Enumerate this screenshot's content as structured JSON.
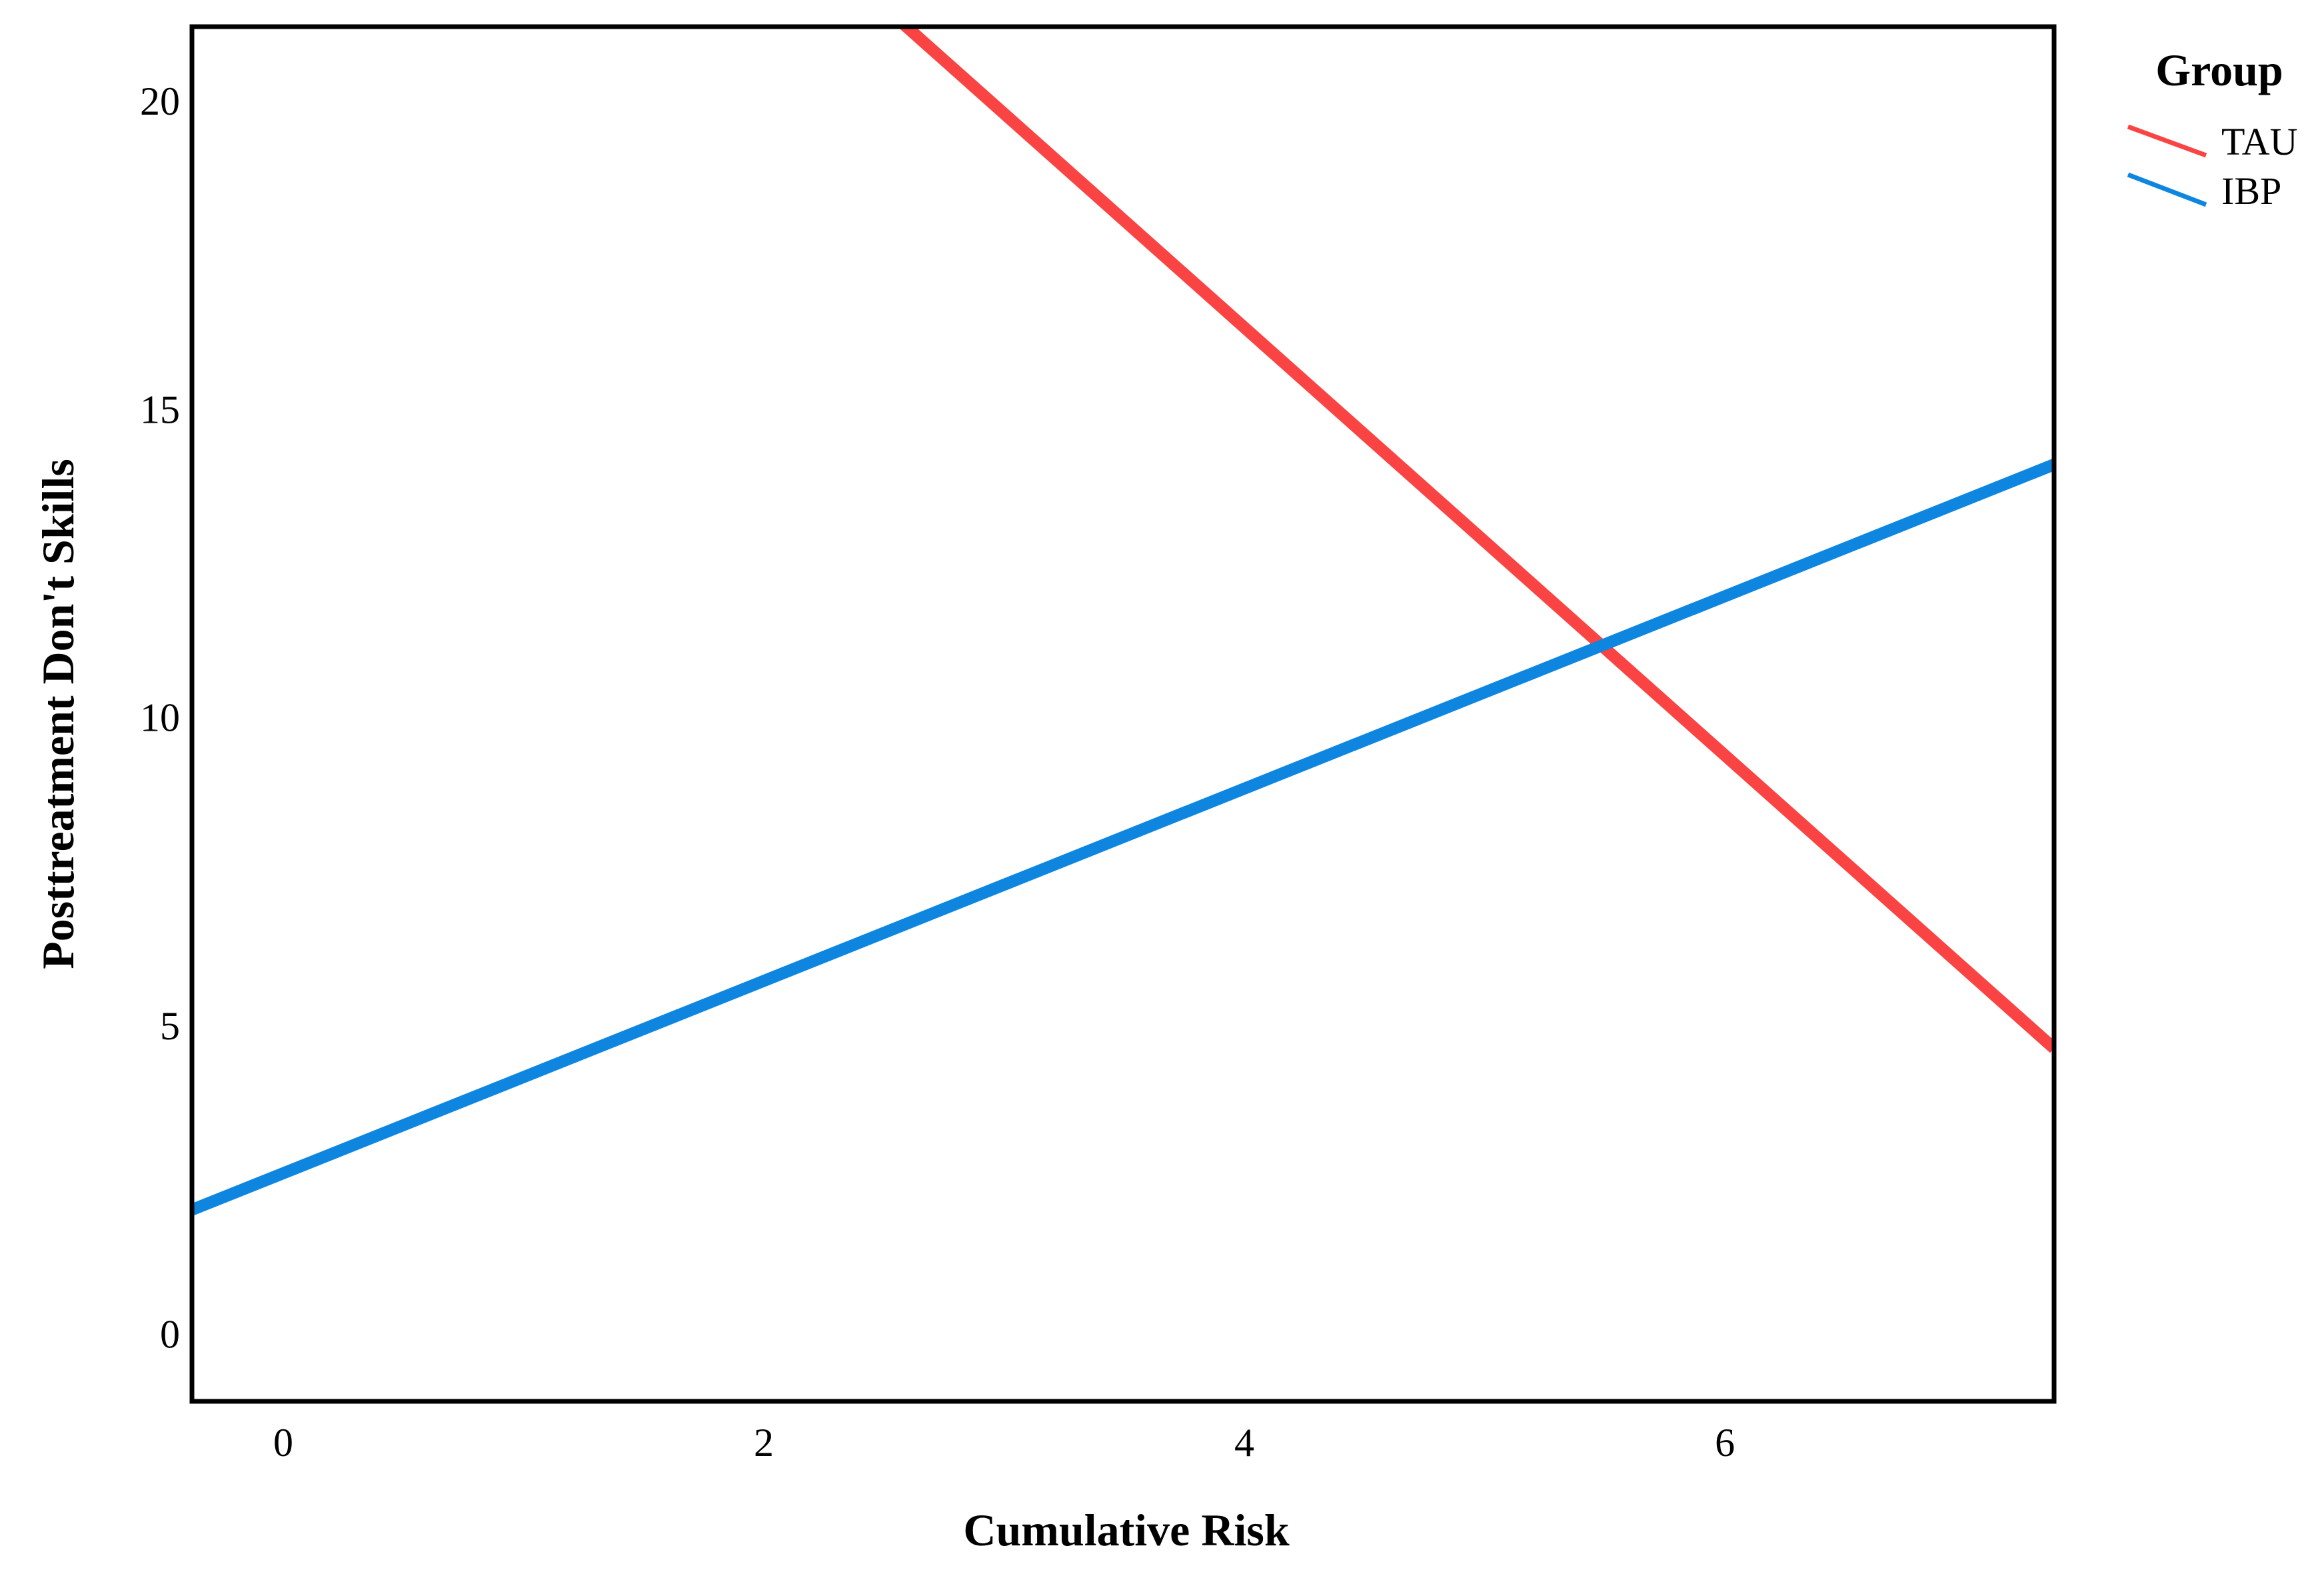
{
  "figure": {
    "background_color": "#ffffff",
    "frame_color": "#000000",
    "text_color": "#000000"
  },
  "chart_data": {
    "type": "line",
    "title": "",
    "xlabel": "Cumulative Risk",
    "ylabel": "Posttreatment Don't Skills",
    "xlim": [
      -0.38,
      7.37
    ],
    "ylim": [
      -1.1,
      21.2
    ],
    "xticks": [
      "0",
      "2",
      "4",
      "6"
    ],
    "xtick_values": [
      0,
      2,
      4,
      6
    ],
    "yticks": [
      "0",
      "5",
      "10",
      "15",
      "20"
    ],
    "ytick_values": [
      0,
      5,
      10,
      15,
      20
    ],
    "grid": false,
    "legend": {
      "title": "Group",
      "position": "outside-top-right",
      "entries": [
        {
          "label": "TAU",
          "color": "#FA4444"
        },
        {
          "label": "IBP",
          "color": "#0E86E0"
        }
      ]
    },
    "series": [
      {
        "name": "TAU",
        "color": "#FA4444",
        "line_width": 18,
        "equation": {
          "intercept": 30.2,
          "slope": -3.47
        },
        "visible_endpoints": [
          [
            2.62,
            21.2
          ],
          [
            7.37,
            4.7
          ]
        ]
      },
      {
        "name": "IBP",
        "color": "#0E86E0",
        "line_width": 18,
        "equation": {
          "intercept": 2.6,
          "slope": 1.56
        },
        "visible_endpoints": [
          [
            -0.38,
            2.0
          ],
          [
            7.37,
            14.1
          ]
        ]
      }
    ]
  }
}
